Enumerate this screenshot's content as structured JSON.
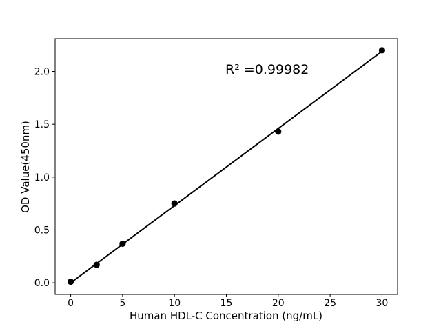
{
  "page": {
    "background": "#ffffff"
  },
  "chart_data": {
    "type": "scatter",
    "title": "",
    "xlabel": "Human HDL-C Concentration (ng/mL)",
    "ylabel": "OD Value(450nm)",
    "annotation": "R² =0.99982",
    "x": [
      0,
      2.5,
      5,
      10,
      20,
      30
    ],
    "y": [
      0.01,
      0.17,
      0.37,
      0.75,
      1.43,
      2.2
    ],
    "fit_line": {
      "x": [
        0,
        30
      ],
      "y": [
        0.0,
        2.19
      ]
    },
    "xlim": [
      -1.5,
      31.5
    ],
    "ylim": [
      -0.11,
      2.31
    ],
    "xticks": {
      "values": [
        0,
        5,
        10,
        15,
        20,
        25,
        30
      ],
      "labels": [
        "0",
        "5",
        "10",
        "15",
        "20",
        "25",
        "30"
      ]
    },
    "yticks": {
      "values": [
        0,
        0.5,
        1,
        1.5,
        2
      ],
      "labels": [
        "0.0",
        "0.5",
        "1.0",
        "1.5",
        "2.0"
      ]
    },
    "grid": false,
    "legend": false,
    "line_color": "#000000",
    "marker_color": "#000000",
    "axis_color": "#000000",
    "background": "#ffffff"
  }
}
